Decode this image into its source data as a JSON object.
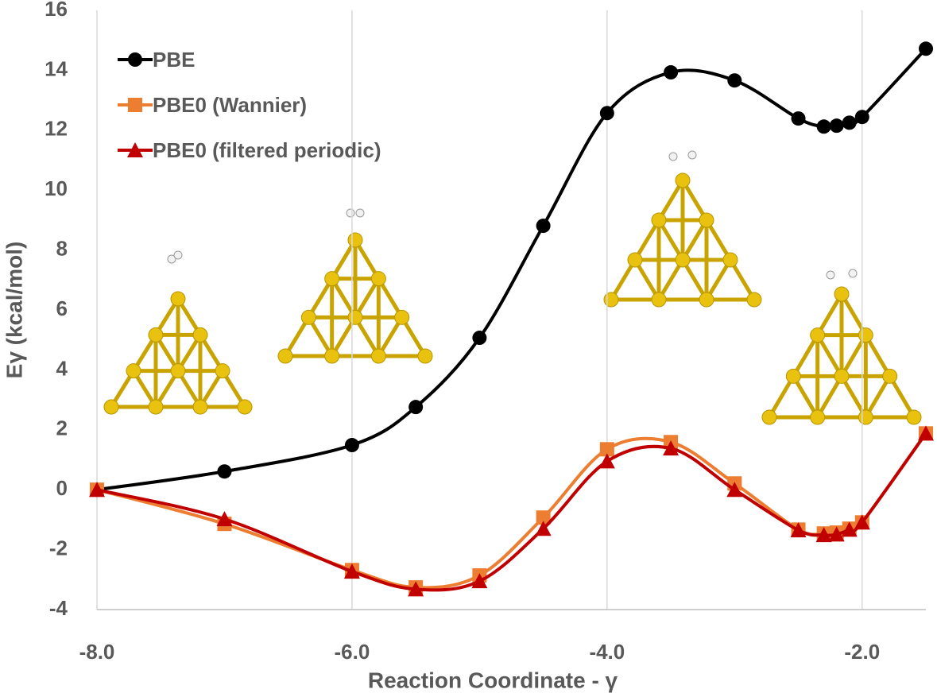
{
  "chart_data": {
    "type": "line",
    "x_label": "Reaction Coordinate - γ",
    "y_label": "Eγ  (kcal/mol)",
    "x": [
      -8,
      -7,
      -6,
      -5.5,
      -5,
      -4.5,
      -4,
      -3.5,
      -3,
      -2.5,
      -2.3,
      -2.2,
      -2.1,
      -2.0,
      -1.5
    ],
    "series": [
      {
        "name": "PBE",
        "color": "#000000",
        "marker": "circle",
        "values": [
          0,
          0.61,
          1.49,
          2.76,
          5.07,
          8.81,
          12.57,
          13.93,
          13.66,
          12.39,
          12.12,
          12.15,
          12.25,
          12.44,
          14.72
        ]
      },
      {
        "name": "PBE0 (Wannier)",
        "color": "#ED7D31",
        "marker": "square",
        "values": [
          0,
          -1.14,
          -2.68,
          -3.26,
          -2.86,
          -0.93,
          1.35,
          1.59,
          0.21,
          -1.33,
          -1.46,
          -1.43,
          -1.3,
          -1.09,
          1.88
        ]
      },
      {
        "name": "PBE0 (filtered periodic)",
        "color": "#C00000",
        "marker": "triangle",
        "values": [
          0,
          -0.98,
          -2.73,
          -3.32,
          -3.05,
          -1.3,
          0.95,
          1.38,
          0.0,
          -1.35,
          -1.51,
          -1.49,
          -1.33,
          -1.09,
          1.88
        ]
      }
    ],
    "xlim": [
      -8,
      -1.5
    ],
    "xticks": [
      {
        "value": -8,
        "label": "-8.0"
      },
      {
        "value": -6,
        "label": "-6.0"
      },
      {
        "value": -4,
        "label": "-4.0"
      },
      {
        "value": -2,
        "label": "-2.0"
      }
    ],
    "ylim": [
      -4,
      16
    ],
    "yticks": [
      -4,
      -2,
      0,
      2,
      4,
      6,
      8,
      10,
      12,
      14,
      16
    ],
    "x_grid": true,
    "smooth": true,
    "legend": "upper-left"
  }
}
